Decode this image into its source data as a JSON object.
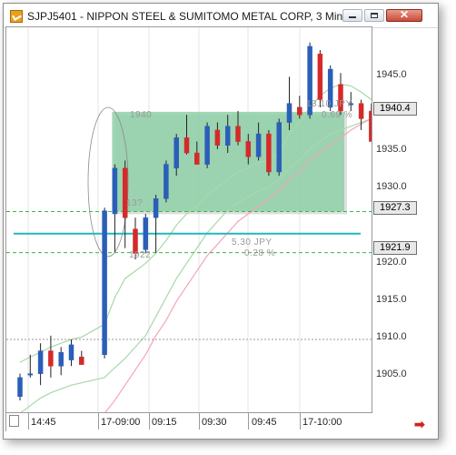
{
  "window": {
    "title": "SJPJ5401 - NIPPON STEEL & SUMITOMO METAL CORP, 3 Min",
    "close_glyph": "✕"
  },
  "chart_data": {
    "type": "candlestick",
    "symbol": "SJPJ5401",
    "interval": "3 Min",
    "ylim": [
      1900.7,
      1951.5
    ],
    "y_ticks": [
      "1945.0",
      "1940.0",
      "1935.0",
      "1930.0",
      "1925.0",
      "1920.0",
      "1915.0",
      "1910.0",
      "1905.0"
    ],
    "x_ticks": [
      "14:45",
      "17-09:00",
      "09:15",
      "09:30",
      "09:45",
      "17-10:00"
    ],
    "price_badges": [
      "1940.4",
      "1927.3",
      "1921.9"
    ],
    "annotations": {
      "box_top": "1940",
      "box_bottom": "1922",
      "box_mid": "13?",
      "range_jpy": "5.30  JPY",
      "range_pct": "0.28  %",
      "top_jpy": "13.10  JPY",
      "top_pct": "0.69 %"
    },
    "candles": [
      {
        "o": 1903.0,
        "h": 1906.0,
        "l": 1902.5,
        "c": 1905.5
      },
      {
        "o": 1906.0,
        "h": 1908.5,
        "l": 1905.5,
        "c": 1906.0
      },
      {
        "o": 1906.0,
        "h": 1910.0,
        "l": 1904.5,
        "c": 1909.0
      },
      {
        "o": 1909.0,
        "h": 1911.0,
        "l": 1905.5,
        "c": 1907.0
      },
      {
        "o": 1907.0,
        "h": 1909.5,
        "l": 1905.8,
        "c": 1908.8
      },
      {
        "o": 1907.8,
        "h": 1910.5,
        "l": 1907.0,
        "c": 1909.8
      },
      {
        "o": 1908.2,
        "h": 1909.0,
        "l": 1907.5,
        "c": 1907.2
      },
      {
        "o": 1908.5,
        "h": 1927.8,
        "l": 1908.0,
        "c": 1927.4
      },
      {
        "o": 1927.0,
        "h": 1933.5,
        "l": 1922.0,
        "c": 1933.0
      },
      {
        "o": 1933.0,
        "h": 1934.0,
        "l": 1922.5,
        "c": 1926.5
      },
      {
        "o": 1925.0,
        "h": 1926.5,
        "l": 1921.0,
        "c": 1921.8
      },
      {
        "o": 1922.3,
        "h": 1927.0,
        "l": 1921.8,
        "c": 1926.5
      },
      {
        "o": 1926.5,
        "h": 1929.5,
        "l": 1921.9,
        "c": 1929.0
      },
      {
        "o": 1929.0,
        "h": 1934.0,
        "l": 1928.5,
        "c": 1933.5
      },
      {
        "o": 1933.0,
        "h": 1937.5,
        "l": 1932.0,
        "c": 1937.0
      },
      {
        "o": 1937.0,
        "h": 1940.0,
        "l": 1934.8,
        "c": 1935.0
      },
      {
        "o": 1935.0,
        "h": 1936.5,
        "l": 1933.5,
        "c": 1933.5
      },
      {
        "o": 1933.5,
        "h": 1939.0,
        "l": 1933.0,
        "c": 1938.5
      },
      {
        "o": 1938.0,
        "h": 1939.0,
        "l": 1935.5,
        "c": 1936.0
      },
      {
        "o": 1936.0,
        "h": 1940.0,
        "l": 1935.0,
        "c": 1938.5
      },
      {
        "o": 1938.5,
        "h": 1940.5,
        "l": 1936.0,
        "c": 1936.5
      },
      {
        "o": 1936.5,
        "h": 1937.5,
        "l": 1933.5,
        "c": 1934.5
      },
      {
        "o": 1934.5,
        "h": 1939.0,
        "l": 1934.0,
        "c": 1937.5
      },
      {
        "o": 1937.5,
        "h": 1938.0,
        "l": 1932.0,
        "c": 1932.5
      },
      {
        "o": 1932.5,
        "h": 1939.5,
        "l": 1932.0,
        "c": 1939.0
      },
      {
        "o": 1939.0,
        "h": 1945.0,
        "l": 1938.0,
        "c": 1941.5
      },
      {
        "o": 1941.0,
        "h": 1942.5,
        "l": 1939.5,
        "c": 1940.0
      },
      {
        "o": 1940.0,
        "h": 1949.5,
        "l": 1939.5,
        "c": 1949.0
      },
      {
        "o": 1948.0,
        "h": 1948.5,
        "l": 1941.0,
        "c": 1942.0
      },
      {
        "o": 1941.0,
        "h": 1946.5,
        "l": 1940.5,
        "c": 1946.0
      },
      {
        "o": 1944.0,
        "h": 1945.5,
        "l": 1940.0,
        "c": 1940.5
      },
      {
        "o": 1941.5,
        "h": 1943.0,
        "l": 1940.5,
        "c": 1941.5
      },
      {
        "o": 1941.5,
        "h": 1942.0,
        "l": 1938.0,
        "c": 1939.5
      },
      {
        "o": 1940.5,
        "h": 1941.5,
        "l": 1936.5,
        "c": 1936.5
      }
    ],
    "candle_gaps_after": [
      6
    ],
    "levels": [
      1927.3,
      1921.9
    ],
    "dotted_level": 1910.5,
    "cyan_level": 1924.4,
    "box": {
      "start_index": 8,
      "end_index": 33,
      "top": 1940.4,
      "bottom": 1927.3
    },
    "ma_upper": [
      1907.5,
      1908.2,
      1908.8,
      1909.5,
      1910.0,
      1910.5,
      1910.8,
      1912.5,
      1916.0,
      1918.5,
      1919.5,
      1920.5,
      1921.8,
      1923.5,
      1925.5,
      1927.0,
      1928.0,
      1929.5,
      1930.5,
      1931.5,
      1932.5,
      1933.0,
      1933.8,
      1934.0,
      1935.0,
      1937.5,
      1939.0,
      1941.0,
      1942.5,
      1943.5,
      1944.0,
      1943.8,
      1943.0,
      1942.0
    ],
    "ma_lower": [
      1900.8,
      1901.8,
      1902.8,
      1903.5,
      1904.0,
      1904.5,
      1904.8,
      1905.5,
      1906.8,
      1908.0,
      1909.5,
      1911.0,
      1913.5,
      1916.0,
      1918.5,
      1920.5,
      1922.5,
      1924.5,
      1926.0,
      1927.5,
      1928.5,
      1929.2,
      1930.0,
      1930.5,
      1931.5,
      1933.0,
      1934.0,
      1935.5,
      1936.5,
      1937.5,
      1938.0,
      1938.5,
      1939.0,
      1939.5
    ],
    "ma_slow": [
      null,
      null,
      null,
      null,
      null,
      null,
      null,
      1900.8,
      1902.5,
      1904.5,
      1906.5,
      1908.5,
      1911.0,
      1913.0,
      1915.5,
      1917.5,
      1919.5,
      1921.5,
      1923.0,
      1924.5,
      1926.0,
      1927.0,
      1928.0,
      1929.0,
      1930.0,
      1931.5,
      1932.5,
      1934.0,
      1935.0,
      1936.0,
      1937.0,
      1938.0,
      1938.8,
      1939.5
    ],
    "colors": {
      "up": "#2a5fb8",
      "down": "#d42a2a",
      "box": "#8fd0a8",
      "cyan": "#20b8c0",
      "level": "#3bb84a",
      "ma_upper": "#a9d8a9",
      "ma_lower": "#a9d8a9",
      "ma_slow": "#f4a4b8"
    }
  }
}
